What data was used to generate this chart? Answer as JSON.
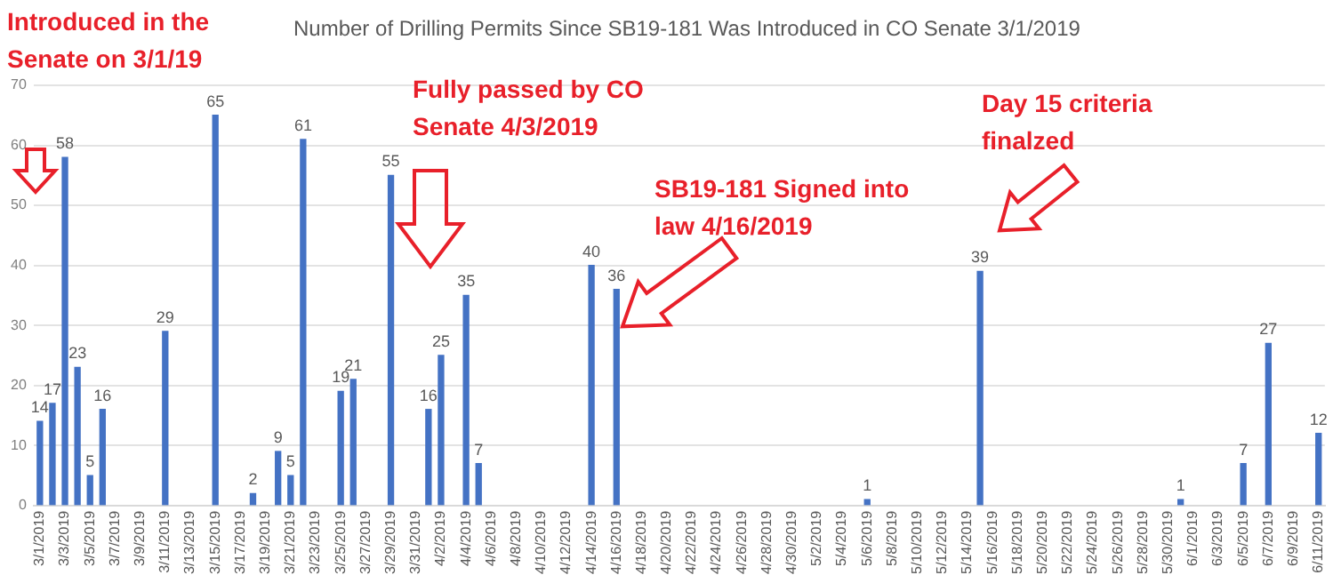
{
  "chart_data": {
    "type": "bar",
    "title": "Number of Drilling Permits Since SB19-181 Was Introduced in CO Senate 3/1/2019",
    "categories": [
      "3/1/2019",
      null,
      "3/3/2019",
      null,
      "3/5/2019",
      null,
      "3/7/2019",
      null,
      "3/9/2019",
      null,
      "3/11/2019",
      null,
      "3/13/2019",
      null,
      "3/15/2019",
      null,
      "3/17/2019",
      null,
      "3/19/2019",
      null,
      "3/21/2019",
      null,
      "3/23/2019",
      null,
      "3/25/2019",
      null,
      "3/27/2019",
      null,
      "3/29/2019",
      null,
      "3/31/2019",
      null,
      "4/2/2019",
      null,
      "4/4/2019",
      null,
      "4/6/2019",
      null,
      "4/8/2019",
      null,
      "4/10/2019",
      null,
      "4/12/2019",
      null,
      "4/14/2019",
      null,
      "4/16/2019",
      null,
      "4/18/2019",
      null,
      "4/20/2019",
      null,
      "4/22/2019",
      null,
      "4/24/2019",
      null,
      "4/26/2019",
      null,
      "4/28/2019",
      null,
      "4/30/2019",
      null,
      "5/2/2019",
      null,
      "5/4/2019",
      null,
      "5/6/2019",
      null,
      "5/8/2019",
      null,
      "5/10/2019",
      null,
      "5/12/2019",
      null,
      "5/14/2019",
      null,
      "5/16/2019",
      null,
      "5/18/2019",
      null,
      "5/20/2019",
      null,
      "5/22/2019",
      null,
      "5/24/2019",
      null,
      "5/26/2019",
      null,
      "5/28/2019",
      null,
      "5/30/2019",
      null,
      "6/1/2019",
      null,
      "6/3/2019",
      null,
      "6/5/2019",
      null,
      "6/7/2019",
      null,
      "6/9/2019",
      null,
      "6/11/2019"
    ],
    "values": [
      14,
      17,
      58,
      23,
      5,
      16,
      null,
      null,
      null,
      null,
      29,
      null,
      null,
      null,
      65,
      null,
      null,
      2,
      null,
      9,
      5,
      61,
      null,
      null,
      19,
      21,
      null,
      null,
      55,
      null,
      null,
      16,
      25,
      null,
      35,
      7,
      null,
      null,
      null,
      null,
      null,
      null,
      null,
      null,
      40,
      null,
      36,
      null,
      null,
      null,
      null,
      null,
      null,
      null,
      null,
      null,
      null,
      null,
      null,
      null,
      null,
      null,
      null,
      null,
      null,
      null,
      1,
      null,
      null,
      null,
      null,
      null,
      null,
      null,
      null,
      39,
      null,
      null,
      null,
      null,
      null,
      null,
      null,
      null,
      null,
      null,
      null,
      null,
      null,
      null,
      null,
      1,
      null,
      null,
      null,
      null,
      7,
      null,
      27,
      null,
      null,
      null,
      12
    ],
    "color": "#4472c4",
    "ylim": [
      0,
      70
    ],
    "yticks": [
      0,
      10,
      20,
      30,
      40,
      50,
      60,
      70
    ],
    "grid": "y",
    "data_labels": true,
    "annotations": [
      "Introduced in the Senate on 3/1/19",
      "Fully passed by CO Senate 4/3/2019",
      "SB19-181 Signed into law 4/16/2019",
      "Day 15 criteria finalzed"
    ]
  }
}
